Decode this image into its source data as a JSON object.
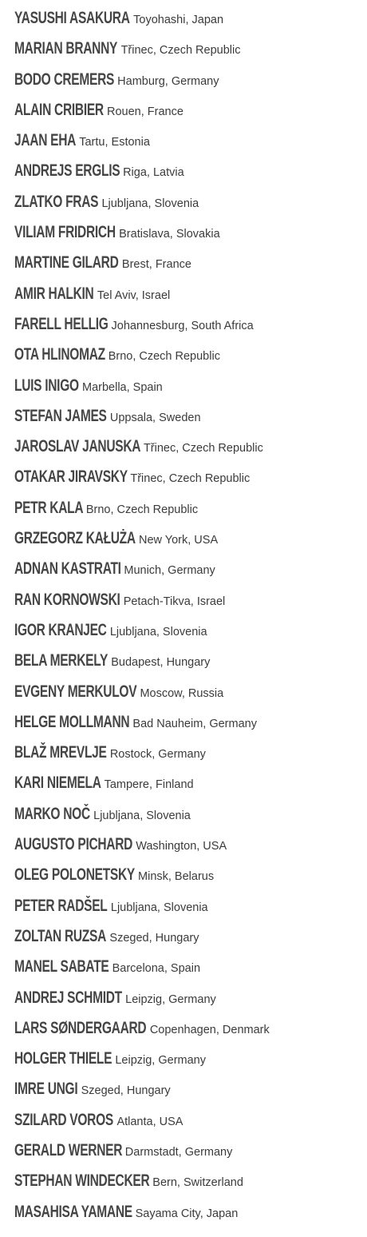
{
  "entries": [
    {
      "name": "YASUSHI ASAKURA",
      "location": "Toyohashi, Japan"
    },
    {
      "name": "MARIAN BRANNY",
      "location": "Třinec, Czech Republic"
    },
    {
      "name": "BODO CREMERS",
      "location": "Hamburg, Germany"
    },
    {
      "name": "ALAIN CRIBIER",
      "location": "Rouen, France"
    },
    {
      "name": "JAAN EHA",
      "location": "Tartu, Estonia"
    },
    {
      "name": "ANDREJS ERGLIS",
      "location": "Riga, Latvia"
    },
    {
      "name": "ZLATKO FRAS",
      "location": "Ljubljana, Slovenia"
    },
    {
      "name": "VILIAM FRIDRICH",
      "location": "Bratislava, Slovakia"
    },
    {
      "name": "MARTINE GILARD",
      "location": "Brest, France"
    },
    {
      "name": "AMIR HALKIN",
      "location": "Tel Aviv, Israel"
    },
    {
      "name": "FARELL HELLIG",
      "location": "Johannesburg, South Africa"
    },
    {
      "name": "OTA HLINOMAZ",
      "location": "Brno, Czech Republic"
    },
    {
      "name": "LUIS INIGO",
      "location": "Marbella, Spain"
    },
    {
      "name": "STEFAN JAMES",
      "location": "Uppsala, Sweden"
    },
    {
      "name": "JAROSLAV JANUSKA",
      "location": "Třinec, Czech Republic"
    },
    {
      "name": "OTAKAR JIRAVSKY",
      "location": "Třinec, Czech Republic"
    },
    {
      "name": "PETR KALA",
      "location": "Brno, Czech Republic"
    },
    {
      "name": "GRZEGORZ KAŁUŻA",
      "location": "New York, USA"
    },
    {
      "name": "ADNAN KASTRATI",
      "location": "Munich, Germany"
    },
    {
      "name": "RAN KORNOWSKI",
      "location": "Petach-Tikva, Israel"
    },
    {
      "name": "IGOR KRANJEC",
      "location": "Ljubljana, Slovenia"
    },
    {
      "name": "BELA MERKELY",
      "location": "Budapest, Hungary"
    },
    {
      "name": "EVGENY MERKULOV",
      "location": "Moscow, Russia"
    },
    {
      "name": "HELGE MOLLMANN",
      "location": "Bad Nauheim, Germany"
    },
    {
      "name": "BLAŽ MREVLJE",
      "location": "Rostock, Germany"
    },
    {
      "name": "KARI NIEMELA",
      "location": "Tampere, Finland"
    },
    {
      "name": "MARKO NOČ",
      "location": "Ljubljana, Slovenia"
    },
    {
      "name": "AUGUSTO PICHARD",
      "location": "Washington, USA"
    },
    {
      "name": "OLEG POLONETSKY",
      "location": "Minsk, Belarus"
    },
    {
      "name": "PETER RADŠEL",
      "location": "Ljubljana, Slovenia"
    },
    {
      "name": "ZOLTAN RUZSA",
      "location": "Szeged, Hungary"
    },
    {
      "name": "MANEL SABATE",
      "location": "Barcelona, Spain"
    },
    {
      "name": "ANDREJ SCHMIDT",
      "location": "Leipzig, Germany"
    },
    {
      "name": "LARS SØNDERGAARD",
      "location": "Copenhagen, Denmark"
    },
    {
      "name": "HOLGER THIELE",
      "location": "Leipzig, Germany"
    },
    {
      "name": "IMRE UNGI",
      "location": "Szeged, Hungary"
    },
    {
      "name": "SZILARD VOROS",
      "location": "Atlanta, USA"
    },
    {
      "name": "GERALD WERNER",
      "location": "Darmstadt, Germany"
    },
    {
      "name": "STEPHAN WINDECKER",
      "location": "Bern, Switzerland"
    },
    {
      "name": "MASAHISA YAMANE",
      "location": "Sayama City, Japan"
    }
  ]
}
